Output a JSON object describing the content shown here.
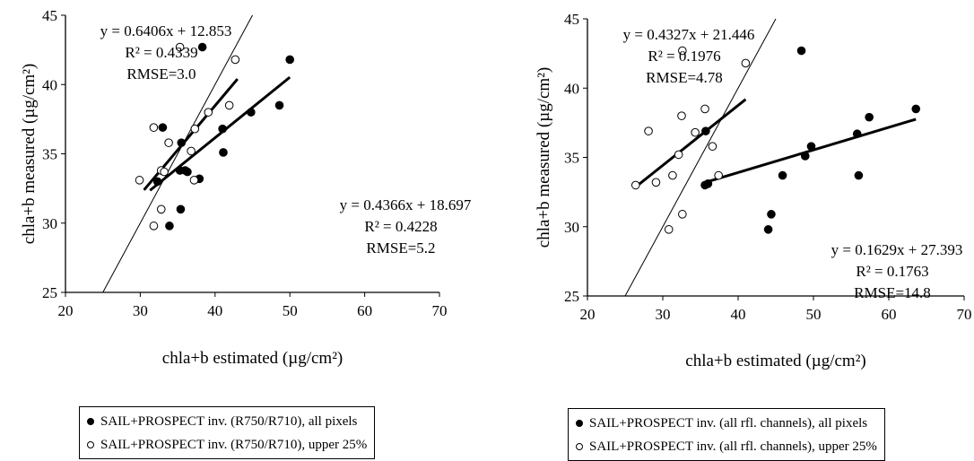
{
  "chart_data": [
    {
      "type": "scatter",
      "xlabel": "chla+b estimated (µg/cm²)",
      "ylabel": "chla+b measured (µg/cm²)",
      "xlim": [
        20,
        70
      ],
      "ylim": [
        25,
        45
      ],
      "xticks": [
        "20",
        "30",
        "40",
        "50",
        "60",
        "70"
      ],
      "yticks": [
        "25",
        "30",
        "35",
        "40",
        "45"
      ],
      "one_to_one_line": true,
      "series": [
        {
          "name": "SAIL+PROSPECT inv. (R750/R710), all pixels",
          "marker": "filled",
          "points": [
            [
              32.3,
              33.0
            ],
            [
              33.0,
              36.9
            ],
            [
              33.9,
              29.8
            ],
            [
              35.3,
              33.8
            ],
            [
              35.4,
              31.0
            ],
            [
              35.5,
              35.8
            ],
            [
              36.0,
              33.8
            ],
            [
              36.3,
              33.7
            ],
            [
              37.9,
              33.2
            ],
            [
              38.3,
              42.7
            ],
            [
              41.0,
              36.8
            ],
            [
              41.1,
              35.1
            ],
            [
              44.8,
              38.0
            ],
            [
              48.6,
              38.5
            ],
            [
              50.0,
              41.8
            ]
          ],
          "fit": {
            "slope": 0.4366,
            "intercept": 18.697,
            "x_range": [
              31.3,
              50.0
            ]
          },
          "annotation": [
            "y = 0.4366x + 18.697",
            "R² = 0.4228",
            "RMSE=5.2"
          ]
        },
        {
          "name": "SAIL+PROSPECT inv. (R750/R710), upper 25%",
          "marker": "open",
          "points": [
            [
              29.9,
              33.1
            ],
            [
              31.8,
              36.9
            ],
            [
              31.8,
              29.8
            ],
            [
              32.8,
              31.0
            ],
            [
              32.8,
              33.8
            ],
            [
              33.2,
              33.7
            ],
            [
              33.8,
              35.8
            ],
            [
              35.3,
              42.7
            ],
            [
              36.8,
              35.2
            ],
            [
              37.2,
              33.1
            ],
            [
              37.3,
              36.8
            ],
            [
              39.1,
              38.0
            ],
            [
              41.9,
              38.5
            ],
            [
              42.7,
              41.8
            ]
          ],
          "fit": {
            "slope": 0.6406,
            "intercept": 12.853,
            "x_range": [
              30.5,
              43.0
            ]
          },
          "annotation": [
            "y = 0.6406x + 12.853",
            "R² = 0.4339",
            "RMSE=3.0"
          ]
        }
      ]
    },
    {
      "type": "scatter",
      "xlabel": "chla+b estimated (µg/cm²)",
      "ylabel": "chla+b measured (µg/cm²)",
      "xlim": [
        20,
        70
      ],
      "ylim": [
        25,
        45
      ],
      "xticks": [
        "20",
        "30",
        "40",
        "50",
        "60",
        "70"
      ],
      "yticks": [
        "25",
        "30",
        "35",
        "40",
        "45"
      ],
      "one_to_one_line": true,
      "series": [
        {
          "name": "SAIL+PROSPECT inv. (all rfl. channels), all pixels",
          "marker": "filled",
          "points": [
            [
              35.6,
              33.0
            ],
            [
              35.7,
              36.9
            ],
            [
              36.0,
              33.1
            ],
            [
              44.0,
              29.8
            ],
            [
              44.4,
              30.9
            ],
            [
              45.9,
              33.7
            ],
            [
              48.4,
              42.7
            ],
            [
              48.9,
              35.1
            ],
            [
              49.7,
              35.8
            ],
            [
              55.8,
              36.7
            ],
            [
              56.0,
              33.7
            ],
            [
              57.4,
              37.9
            ],
            [
              63.6,
              38.5
            ]
          ],
          "fit": {
            "slope": 0.1629,
            "intercept": 27.393,
            "x_range": [
              35.5,
              63.6
            ]
          },
          "annotation": [
            "y = 0.1629x + 27.393",
            "R² = 0.1763",
            "RMSE=14.8"
          ]
        },
        {
          "name": "SAIL+PROSPECT inv. (all rfl. channels), upper 25%",
          "marker": "open",
          "points": [
            [
              26.4,
              33.0
            ],
            [
              28.1,
              36.9
            ],
            [
              29.1,
              33.2
            ],
            [
              30.8,
              29.8
            ],
            [
              31.3,
              33.7
            ],
            [
              32.1,
              35.2
            ],
            [
              32.5,
              38.0
            ],
            [
              32.6,
              30.9
            ],
            [
              32.6,
              42.7
            ],
            [
              34.3,
              36.8
            ],
            [
              35.6,
              38.5
            ],
            [
              36.6,
              35.8
            ],
            [
              37.4,
              33.7
            ],
            [
              41.0,
              41.8
            ]
          ],
          "fit": {
            "slope": 0.4327,
            "intercept": 21.446,
            "x_range": [
              26.4,
              41.0
            ]
          },
          "annotation": [
            "y = 0.4327x + 21.446",
            "R² = 0.1976",
            "RMSE=4.78"
          ]
        }
      ]
    }
  ]
}
